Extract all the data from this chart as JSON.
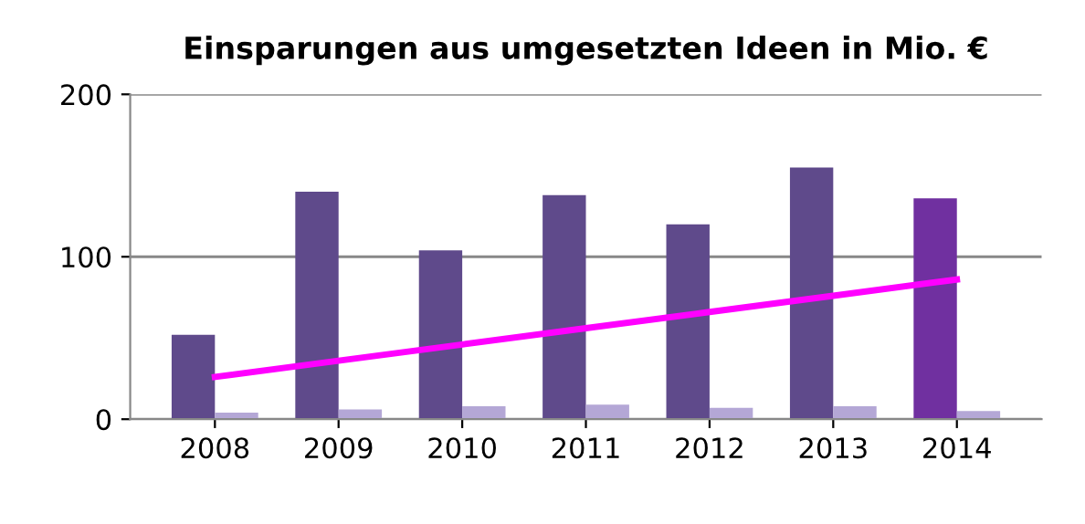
{
  "chart_data": {
    "type": "bar",
    "title": "Einsparungen aus umgesetzten Ideen in Mio. €",
    "categories": [
      "2008",
      "2009",
      "2010",
      "2011",
      "2012",
      "2013",
      "2014"
    ],
    "series": [
      {
        "colors": [
          "#5f4a8b",
          "#5f4a8b",
          "#5f4a8b",
          "#5f4a8b",
          "#5f4a8b",
          "#5f4a8b",
          "#7030a0"
        ],
        "values": [
          52,
          140,
          104,
          138,
          120,
          155,
          136
        ]
      },
      {
        "color": "#b4a7d6",
        "values": [
          4,
          6,
          8,
          9,
          7,
          8,
          5
        ]
      },
      {
        "type": "line",
        "color": "#ff00ff",
        "values": [
          26,
          36,
          46,
          56,
          66,
          76,
          86
        ]
      }
    ],
    "ylim": [
      0,
      200
    ],
    "yticks": [
      0,
      100,
      200
    ],
    "grid": "y",
    "legend": false
  }
}
